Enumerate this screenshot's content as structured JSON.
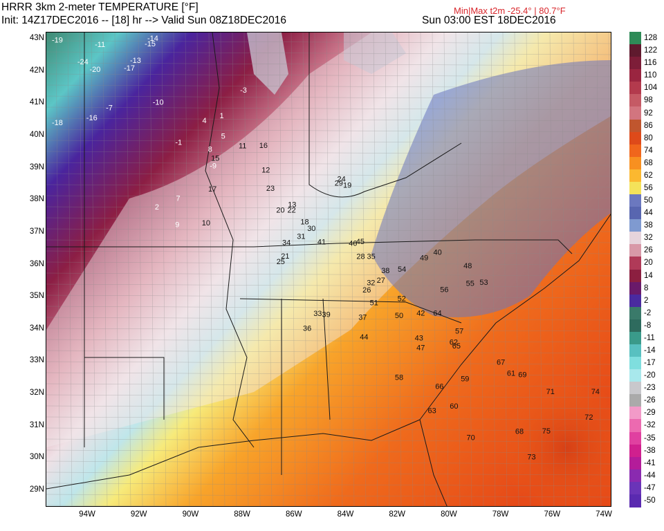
{
  "header": {
    "title": "HRRR 3km 2-meter TEMPERATURE [°F]",
    "init_line": "Init: 14Z17DEC2016 -- [18] hr --> Valid Sun 08Z18DEC2016",
    "local_time": "Sun 03:00 EST 18DEC2016",
    "minmax": "Min|Max t2m -25.4° | 80.7°F"
  },
  "axes": {
    "lat_labels": [
      "43N",
      "42N",
      "41N",
      "40N",
      "39N",
      "38N",
      "37N",
      "36N",
      "35N",
      "34N",
      "33N",
      "32N",
      "31N",
      "30N",
      "29N"
    ],
    "lon_labels": [
      "94W",
      "92W",
      "90W",
      "88W",
      "86W",
      "84W",
      "82W",
      "80W",
      "78W",
      "76W",
      "74W"
    ]
  },
  "colorbar": {
    "labels": [
      "128",
      "122",
      "116",
      "110",
      "104",
      "98",
      "92",
      "86",
      "80",
      "74",
      "68",
      "62",
      "56",
      "50",
      "44",
      "38",
      "32",
      "26",
      "20",
      "14",
      "8",
      "2",
      "-2",
      "-8",
      "-11",
      "-14",
      "-17",
      "-20",
      "-23",
      "-26",
      "-29",
      "-32",
      "-35",
      "-38",
      "-41",
      "-44",
      "-47",
      "-50"
    ],
    "colors": [
      "#2e8b57",
      "#5f1a2e",
      "#7d1d38",
      "#9a2540",
      "#b33a4d",
      "#c55a65",
      "#d2757f",
      "#c0562e",
      "#de4a1a",
      "#f0661c",
      "#f89020",
      "#fbb830",
      "#f4e25a",
      "#6b78bf",
      "#5866b0",
      "#7f9ad0",
      "#e6d4dc",
      "#d899a8",
      "#b03a58",
      "#8c1f40",
      "#6a1a6a",
      "#4a2aa0",
      "#3a7a6a",
      "#2e6b5e",
      "#3a9a8a",
      "#58c0c0",
      "#7fdede",
      "#a8e8ec",
      "#c8c8cc",
      "#aaaaaa",
      "#f29ac8",
      "#ec6ab0",
      "#e040a0",
      "#d0208e",
      "#b41c9a",
      "#8a2ab0",
      "#6a34b8",
      "#5a2ab0"
    ]
  },
  "temperature_labels": [
    {
      "t": "-24"
    },
    {
      "t": "-19"
    },
    {
      "t": "-20"
    },
    {
      "t": "-18"
    },
    {
      "t": "-17"
    },
    {
      "t": "-16"
    },
    {
      "t": "-14"
    },
    {
      "t": "-13"
    },
    {
      "t": "-15"
    },
    {
      "t": "-10"
    },
    {
      "t": "-11"
    },
    {
      "t": "-9"
    },
    {
      "t": "-7"
    },
    {
      "t": "-3"
    },
    {
      "t": "-1"
    },
    {
      "t": "1"
    },
    {
      "t": "2"
    },
    {
      "t": "4"
    },
    {
      "t": "5"
    },
    {
      "t": "7"
    },
    {
      "t": "8"
    },
    {
      "t": "9"
    },
    {
      "t": "10"
    },
    {
      "t": "11"
    },
    {
      "t": "12"
    },
    {
      "t": "13"
    },
    {
      "t": "15"
    },
    {
      "t": "16"
    },
    {
      "t": "17"
    },
    {
      "t": "18"
    },
    {
      "t": "19"
    },
    {
      "t": "20"
    },
    {
      "t": "21"
    },
    {
      "t": "22"
    },
    {
      "t": "23"
    },
    {
      "t": "24"
    },
    {
      "t": "25"
    },
    {
      "t": "26"
    },
    {
      "t": "27"
    },
    {
      "t": "28"
    },
    {
      "t": "29"
    },
    {
      "t": "30"
    },
    {
      "t": "31"
    },
    {
      "t": "32"
    },
    {
      "t": "33"
    },
    {
      "t": "34"
    },
    {
      "t": "35"
    },
    {
      "t": "36"
    },
    {
      "t": "37"
    },
    {
      "t": "38"
    },
    {
      "t": "39"
    },
    {
      "t": "40"
    },
    {
      "t": "41"
    },
    {
      "t": "42"
    },
    {
      "t": "43"
    },
    {
      "t": "44"
    },
    {
      "t": "45"
    },
    {
      "t": "46"
    },
    {
      "t": "47"
    },
    {
      "t": "48"
    },
    {
      "t": "49"
    },
    {
      "t": "50"
    },
    {
      "t": "51"
    },
    {
      "t": "52"
    },
    {
      "t": "53"
    },
    {
      "t": "54"
    },
    {
      "t": "55"
    },
    {
      "t": "56"
    },
    {
      "t": "57"
    },
    {
      "t": "58"
    },
    {
      "t": "59"
    },
    {
      "t": "60"
    },
    {
      "t": "61"
    },
    {
      "t": "62"
    },
    {
      "t": "63"
    },
    {
      "t": "64"
    },
    {
      "t": "65"
    },
    {
      "t": "66"
    },
    {
      "t": "67"
    },
    {
      "t": "68"
    },
    {
      "t": "69"
    },
    {
      "t": "70"
    },
    {
      "t": "71"
    },
    {
      "t": "72"
    },
    {
      "t": "73"
    },
    {
      "t": "74"
    },
    {
      "t": "75"
    }
  ]
}
